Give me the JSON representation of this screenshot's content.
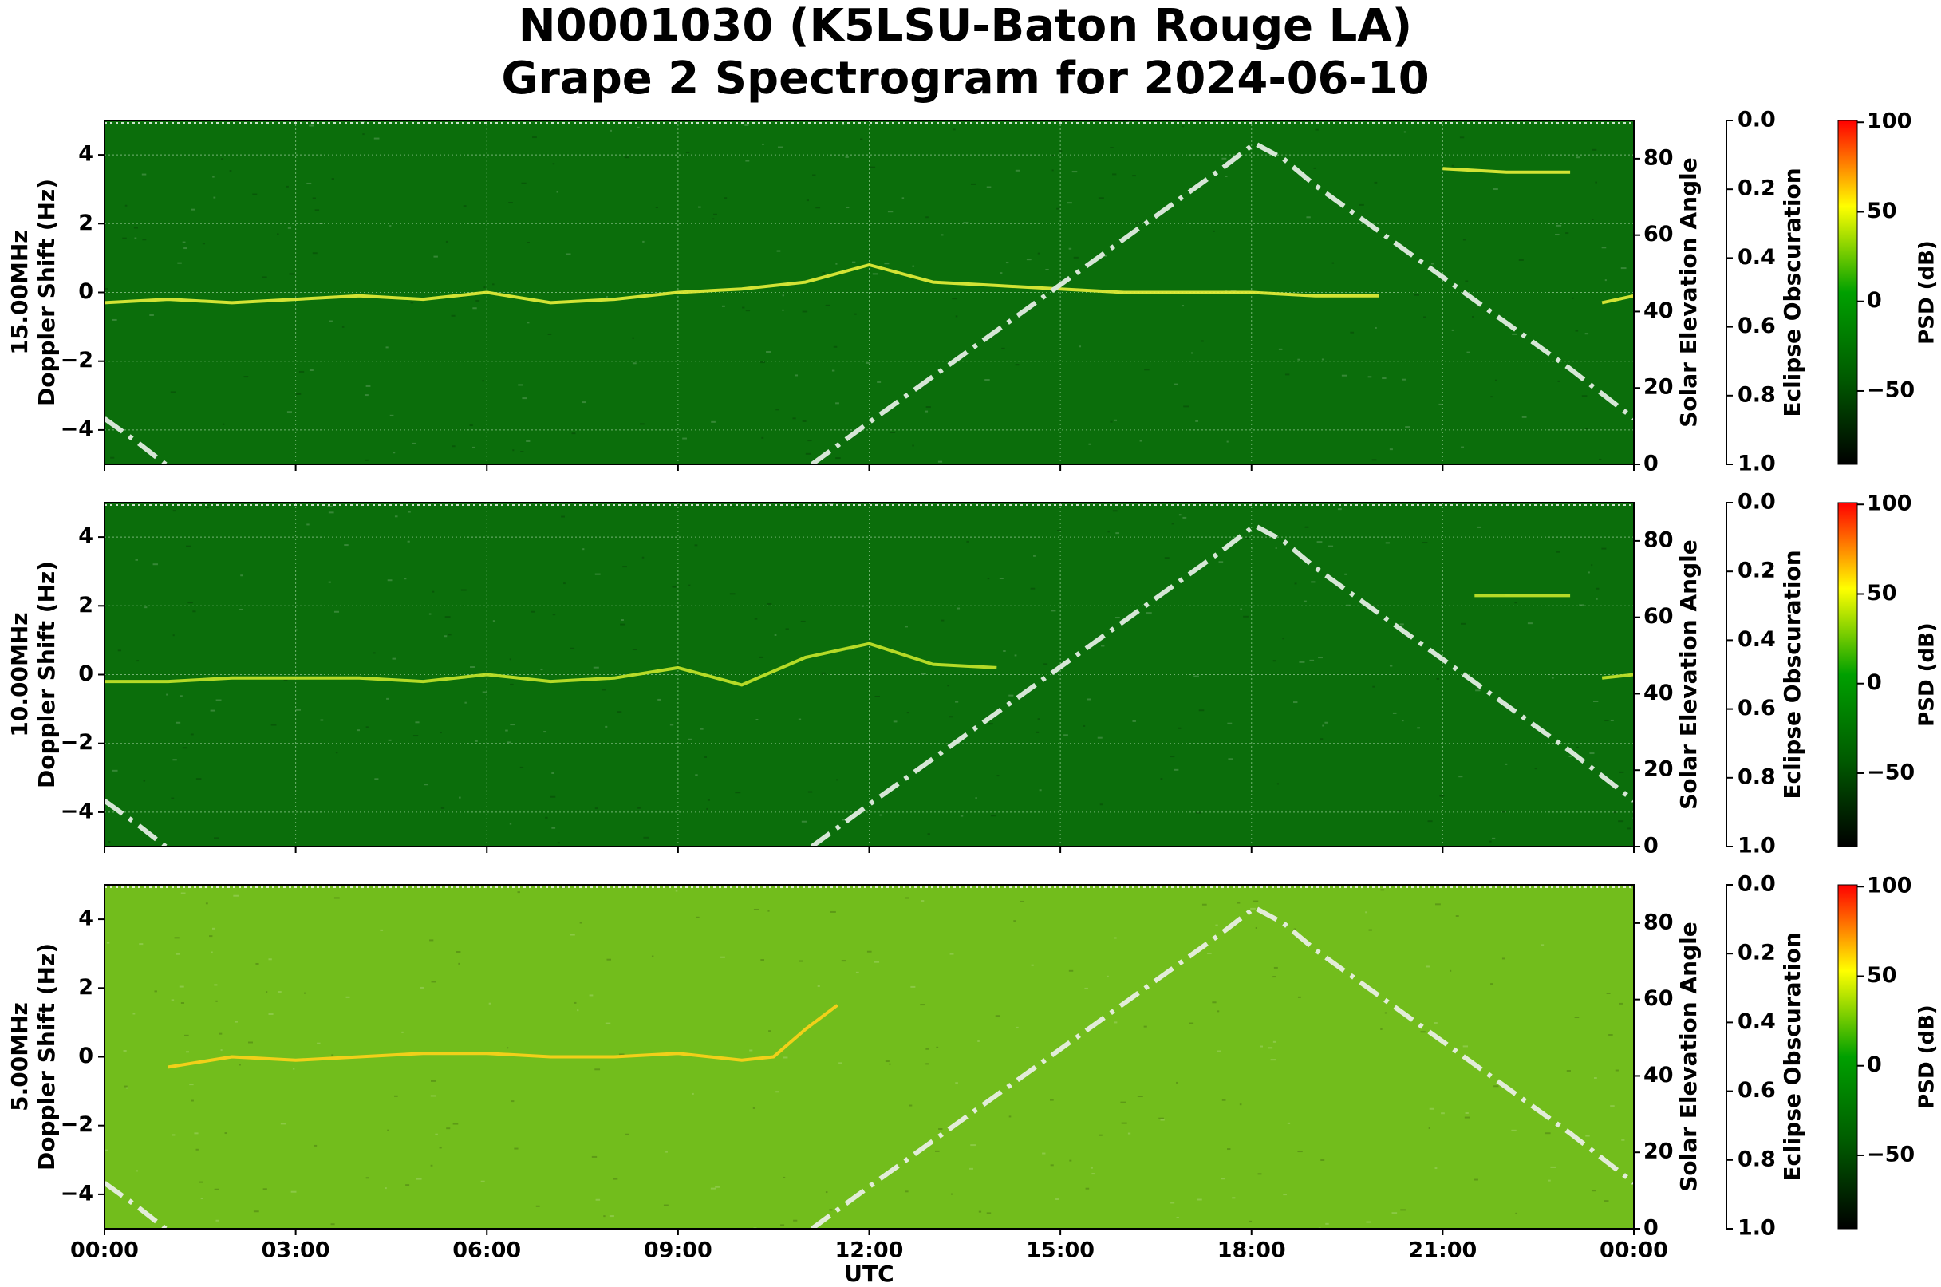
{
  "title": [
    "N0001030 (K5LSU-Baton Rouge LA)",
    "Grape 2 Spectrogram for 2024-06-10"
  ],
  "xaxis": {
    "xlabel": "UTC",
    "xlim": [
      0,
      24
    ],
    "xticks": [
      {
        "value": 0,
        "label": "00:00"
      },
      {
        "value": 3,
        "label": "03:00"
      },
      {
        "value": 6,
        "label": "06:00"
      },
      {
        "value": 9,
        "label": "09:00"
      },
      {
        "value": 12,
        "label": "12:00"
      },
      {
        "value": 15,
        "label": "15:00"
      },
      {
        "value": 18,
        "label": "18:00"
      },
      {
        "value": 21,
        "label": "21:00"
      },
      {
        "value": 24,
        "label": "00:00"
      }
    ]
  },
  "chart_data": [
    {
      "type": "spectrogram",
      "ylabel": [
        "15.00MHz",
        "Doppler Shift (Hz)"
      ],
      "ylim": [
        -5,
        5
      ],
      "yticks": [
        {
          "value": -4,
          "label": "−4"
        },
        {
          "value": -2,
          "label": "−2"
        },
        0,
        2,
        4
      ],
      "y2label": "Solar Elevation Angle",
      "y2lim": [
        0,
        90
      ],
      "y2ticks": [
        0,
        20,
        40,
        60,
        80
      ],
      "eclipse_label": "Eclipse Obscuration",
      "eclipse_lim": [
        0,
        1
      ],
      "eclipse_inverted": true,
      "eclipse_ticks": [
        {
          "value": 0,
          "label": "0.0"
        },
        0.2,
        0.4,
        0.6,
        0.8,
        {
          "value": 1,
          "label": "1.0"
        }
      ],
      "colorbar_label": "PSD (dB)",
      "clim": [
        -91,
        101
      ],
      "cticks": [
        {
          "value": -50,
          "label": "−50"
        },
        0,
        50,
        100
      ],
      "colormap": [
        "#000000",
        "#005a00",
        "#00a000",
        "#ffff00",
        "#ff0000"
      ],
      "background": "#0b6e0b",
      "grid": true,
      "trace": {
        "color": "#e8f03a",
        "x": [
          0,
          1,
          2,
          3,
          4,
          5,
          6,
          7,
          8,
          9,
          10,
          11,
          12,
          13,
          14,
          15,
          16,
          17,
          18,
          19,
          20,
          20.9,
          21,
          22,
          23,
          23.2,
          23.5,
          24
        ],
        "values": [
          -0.3,
          -0.2,
          -0.3,
          -0.2,
          -0.1,
          -0.2,
          0,
          -0.3,
          -0.2,
          0,
          0.1,
          0.3,
          0.8,
          0.3,
          0.2,
          0.1,
          0,
          0,
          0,
          -0.1,
          -0.1,
          null,
          3.6,
          3.5,
          3.5,
          null,
          -0.3,
          -0.1
        ]
      },
      "elevation": {
        "color": "#d6e6d6",
        "x": [
          0,
          0.5,
          0.96,
          6,
          11.1,
          12,
          13,
          14,
          15,
          16,
          17,
          17.5,
          18.05,
          18.5,
          19,
          20,
          21,
          22,
          23,
          24
        ],
        "values": [
          12,
          6,
          0,
          null,
          0,
          11,
          23,
          35,
          47,
          59,
          71,
          77,
          84,
          80,
          73,
          61,
          49,
          37,
          25,
          12
        ]
      }
    },
    {
      "type": "spectrogram",
      "ylabel": [
        "10.00MHz",
        "Doppler Shift (Hz)"
      ],
      "ylim": [
        -5,
        5
      ],
      "yticks": [
        {
          "value": -4,
          "label": "−4"
        },
        {
          "value": -2,
          "label": "−2"
        },
        0,
        2,
        4
      ],
      "y2label": "Solar Elevation Angle",
      "y2lim": [
        0,
        90
      ],
      "y2ticks": [
        0,
        20,
        40,
        60,
        80
      ],
      "eclipse_label": "Eclipse Obscuration",
      "eclipse_lim": [
        0,
        1
      ],
      "eclipse_inverted": true,
      "eclipse_ticks": [
        {
          "value": 0,
          "label": "0.0"
        },
        0.2,
        0.4,
        0.6,
        0.8,
        {
          "value": 1,
          "label": "1.0"
        }
      ],
      "colorbar_label": "PSD (dB)",
      "clim": [
        -91,
        101
      ],
      "cticks": [
        {
          "value": -50,
          "label": "−50"
        },
        0,
        50,
        100
      ],
      "colormap": [
        "#000000",
        "#005a00",
        "#00a000",
        "#ffff00",
        "#ff0000"
      ],
      "background": "#0b6e0b",
      "grid": true,
      "trace": {
        "color": "#c8e62a",
        "x": [
          0,
          1,
          2,
          3,
          4,
          5,
          6,
          7,
          8,
          9,
          10,
          11,
          12,
          13,
          14,
          16,
          21.5,
          23,
          23.3,
          23.5,
          24
        ],
        "values": [
          -0.2,
          -0.2,
          -0.1,
          -0.1,
          -0.1,
          -0.2,
          0,
          -0.2,
          -0.1,
          0.2,
          -0.3,
          0.5,
          0.9,
          0.3,
          0.2,
          null,
          2.3,
          2.3,
          null,
          -0.1,
          0
        ]
      },
      "elevation": {
        "color": "#d6e6d6",
        "x": [
          0,
          0.5,
          0.96,
          6,
          11.1,
          12,
          13,
          14,
          15,
          16,
          17,
          17.5,
          18.05,
          18.5,
          19,
          20,
          21,
          22,
          23,
          24
        ],
        "values": [
          12,
          6,
          0,
          null,
          0,
          11,
          23,
          35,
          47,
          59,
          71,
          77,
          84,
          80,
          73,
          61,
          49,
          37,
          25,
          12
        ]
      }
    },
    {
      "type": "spectrogram",
      "ylabel": [
        "5.00MHz",
        "Doppler Shift (Hz)"
      ],
      "ylim": [
        -5,
        5
      ],
      "yticks": [
        {
          "value": -4,
          "label": "−4"
        },
        {
          "value": -2,
          "label": "−2"
        },
        0,
        2,
        4
      ],
      "y2label": "Solar Elevation Angle",
      "y2lim": [
        0,
        90
      ],
      "y2ticks": [
        0,
        20,
        40,
        60,
        80
      ],
      "eclipse_label": "Eclipse Obscuration",
      "eclipse_lim": [
        0,
        1
      ],
      "eclipse_inverted": true,
      "eclipse_ticks": [
        {
          "value": 0,
          "label": "0.0"
        },
        0.2,
        0.4,
        0.6,
        0.8,
        {
          "value": 1,
          "label": "1.0"
        }
      ],
      "colorbar_label": "PSD (dB)",
      "clim": [
        -91,
        101
      ],
      "cticks": [
        {
          "value": -50,
          "label": "−50"
        },
        0,
        50,
        100
      ],
      "colormap": [
        "#000000",
        "#005a00",
        "#00a000",
        "#ffff00",
        "#ff0000"
      ],
      "background": "#72bd1c",
      "grid": false,
      "trace": {
        "color": "#ffd21a",
        "x": [
          1,
          2,
          3,
          4,
          5,
          6,
          7,
          8,
          9,
          10,
          10.5,
          11,
          11.5
        ],
        "values": [
          -0.3,
          0,
          -0.1,
          0,
          0.1,
          0.1,
          0,
          0,
          0.1,
          -0.1,
          0,
          0.8,
          1.5
        ]
      },
      "elevation": {
        "color": "#e2ecd8",
        "x": [
          0,
          0.5,
          0.96,
          6,
          11.1,
          12,
          13,
          14,
          15,
          16,
          17,
          17.5,
          18.05,
          18.5,
          19,
          20,
          21,
          22,
          23,
          24
        ],
        "values": [
          12,
          6,
          0,
          null,
          0,
          11,
          23,
          35,
          47,
          59,
          71,
          77,
          84,
          80,
          73,
          61,
          49,
          37,
          25,
          12
        ]
      }
    }
  ]
}
